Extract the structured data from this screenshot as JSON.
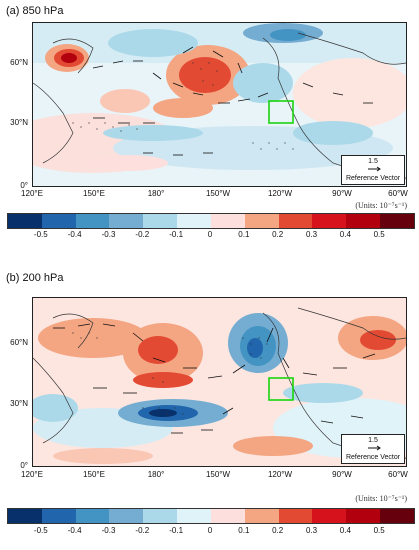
{
  "panels": [
    {
      "label": "(a) 850 hPa"
    },
    {
      "label": "(b) 200 hPa"
    }
  ],
  "lat_labels": [
    "60°N",
    "30°N",
    "0°"
  ],
  "lon_labels": [
    "120°E",
    "150°E",
    "180°",
    "150°W",
    "120°W",
    "90°W",
    "60°W"
  ],
  "reference_vector": {
    "magnitude": "1.5",
    "label": "Reference Vector"
  },
  "units": "(Units: 10⁻⁷s⁻¹)",
  "colorbar": {
    "ticks": [
      "-0.5",
      "-0.4",
      "-0.3",
      "-0.2",
      "-0.1",
      "0",
      "0.1",
      "0.2",
      "0.3",
      "0.4",
      "0.5"
    ],
    "colors": [
      "#08306b",
      "#2166ac",
      "#4393c3",
      "#74add1",
      "#abd9e9",
      "#e0f3f8",
      "#fde0dd",
      "#f4a582",
      "#e34a33",
      "#d6121c",
      "#b2000f",
      "#67000d"
    ]
  },
  "highlight_color": "#19d40d"
}
